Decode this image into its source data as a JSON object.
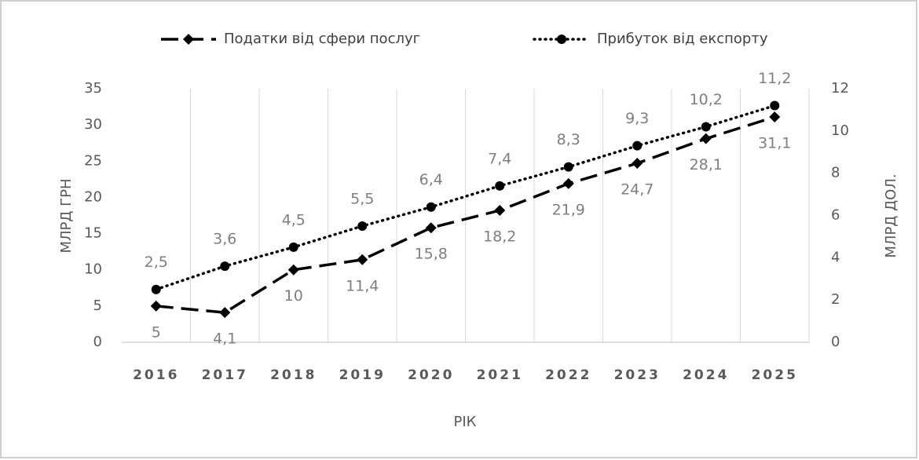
{
  "chart_data": {
    "type": "line",
    "categories": [
      "2016",
      "2017",
      "2018",
      "2019",
      "2020",
      "2021",
      "2022",
      "2023",
      "2024",
      "2025"
    ],
    "series": [
      {
        "name": "Податки від сфери послуг",
        "color": "#000000",
        "marker": "diamond",
        "dash": "dashed",
        "values": [
          5,
          4.1,
          10,
          11.4,
          15.8,
          18.2,
          21.9,
          24.7,
          28.1,
          31.1
        ],
        "value_labels": [
          "5",
          "4,1",
          "10",
          "11,4",
          "15,8",
          "18,2",
          "21,9",
          "24,7",
          "28,1",
          "31,1"
        ]
      },
      {
        "name": "Прибуток від експорту",
        "color": "#000000",
        "marker": "circle",
        "dash": "dotted",
        "axis": "y2",
        "values": [
          2.5,
          3.6,
          4.5,
          5.5,
          6.4,
          7.4,
          8.3,
          9.3,
          10.2,
          11.2
        ],
        "value_labels": [
          "2,5",
          "3,6",
          "4,5",
          "5,5",
          "6,4",
          "7,4",
          "8,3",
          "9,3",
          "10,2",
          "11,2"
        ]
      }
    ],
    "ylabel": "МЛРД ГРН",
    "y2label": "МЛРД ДОЛ.",
    "xlabel": "РІК",
    "ylim": [
      0,
      35
    ],
    "yticks": [
      0,
      5,
      10,
      15,
      20,
      25,
      30,
      35
    ],
    "y2lim": [
      0,
      12
    ],
    "y2ticks": [
      0,
      2,
      4,
      6,
      8,
      10,
      12
    ],
    "grid": true,
    "legend": "top"
  }
}
